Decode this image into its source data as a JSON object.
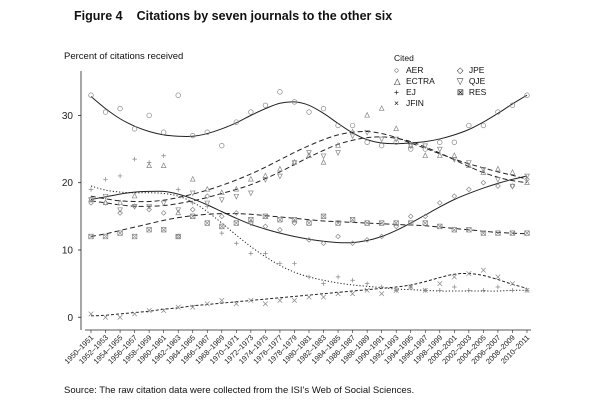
{
  "figure": {
    "number": "Figure 4",
    "title": "Citations by seven journals to the other six",
    "source": "Source: The raw citation data were collected from the ISI’s Web of Social Sciences."
  },
  "chart_data": {
    "type": "scatter",
    "ylabel": "Percent of citations received",
    "ylim": [
      -1,
      36
    ],
    "yticks": [
      0,
      10,
      20,
      30
    ],
    "grid": false,
    "legend_title": "Cited",
    "legend_position": "top-right",
    "categories": [
      "1950–1951",
      "1952–1953",
      "1954–1955",
      "1956–1957",
      "1958–1959",
      "1960–1961",
      "1962–1963",
      "1964–1965",
      "1966–1967",
      "1968–1969",
      "1970–1971",
      "1972–1973",
      "1974–1975",
      "1976–1977",
      "1978–1979",
      "1980–1981",
      "1982–1983",
      "1984–1985",
      "1986–1987",
      "1988–1989",
      "1990–1991",
      "1992–1993",
      "1994–1995",
      "1996–1997",
      "1998–1999",
      "2000–2001",
      "2002–2003",
      "2004–2005",
      "2006–2007",
      "2008–2009",
      "2010–2011"
    ],
    "series": [
      {
        "name": "AER",
        "marker": "circle",
        "line": "solid",
        "values": [
          33,
          30.5,
          31,
          28,
          30,
          27.5,
          33,
          27,
          27.5,
          25.5,
          29,
          30.5,
          31.5,
          33.5,
          32,
          30.5,
          31,
          28.5,
          28.5,
          26,
          25.5,
          26,
          25,
          25,
          26,
          26,
          28.5,
          28.5,
          30.5,
          31.5,
          33
        ],
        "smooth": [
          32.8,
          31.0,
          29.5,
          28.4,
          27.6,
          27.1,
          26.9,
          26.9,
          27.3,
          28.0,
          28.9,
          30.0,
          31.0,
          31.8,
          32.0,
          31.5,
          30.3,
          28.8,
          27.4,
          26.4,
          25.9,
          25.8,
          25.9,
          26.1,
          26.5,
          27.1,
          27.9,
          29.0,
          30.3,
          31.7,
          33.0
        ]
      },
      {
        "name": "ECTRA",
        "marker": "triangle-up",
        "line": "dashed",
        "values": [
          17.5,
          17,
          17,
          18,
          22.5,
          22.5,
          15.5,
          20.5,
          19,
          18.5,
          19,
          20.5,
          21,
          22,
          23,
          24,
          23,
          25.5,
          27.5,
          30,
          31,
          28,
          25.5,
          24,
          24,
          24,
          22.5,
          21.5,
          22,
          21.5,
          20
        ],
        "smooth": [
          18.0,
          17.6,
          17.3,
          17.2,
          17.2,
          17.4,
          17.8,
          18.3,
          18.9,
          19.6,
          20.4,
          21.3,
          22.3,
          23.4,
          24.5,
          25.5,
          26.4,
          27.1,
          27.5,
          27.6,
          27.3,
          26.7,
          25.9,
          25.1,
          24.3,
          23.5,
          22.8,
          22.2,
          21.6,
          21.1,
          20.5
        ]
      },
      {
        "name": "EJ",
        "marker": "plus",
        "line": "dotted",
        "values": [
          19,
          20.5,
          21,
          23.5,
          23,
          24,
          19,
          17,
          16.5,
          12.5,
          11,
          9.5,
          9.5,
          8,
          8,
          6,
          5,
          6,
          5.5,
          5,
          4.5,
          4,
          4.5,
          4,
          4,
          4.5,
          4,
          4,
          4.5,
          4,
          4
        ],
        "smooth": [
          19.5,
          18.9,
          18.6,
          18.5,
          18.5,
          18.4,
          18.0,
          17.1,
          15.7,
          14.0,
          12.2,
          10.5,
          9.0,
          7.7,
          6.7,
          6.0,
          5.5,
          5.1,
          4.8,
          4.6,
          4.4,
          4.2,
          4.1,
          4.0,
          3.9,
          3.9,
          3.9,
          3.9,
          3.9,
          4.0,
          4.0
        ]
      },
      {
        "name": "JFIN",
        "marker": "x",
        "line": "dashed-fine",
        "values": [
          0.5,
          0,
          0,
          0.5,
          1,
          1,
          1.5,
          1.5,
          2,
          2.5,
          2,
          2.5,
          2,
          2.5,
          2.5,
          3,
          3,
          3.5,
          3.5,
          4,
          3.5,
          4,
          4.5,
          4,
          5,
          6,
          6.5,
          7,
          6,
          5,
          4
        ],
        "smooth": [
          0.2,
          0.3,
          0.5,
          0.7,
          0.9,
          1.2,
          1.4,
          1.7,
          1.9,
          2.1,
          2.3,
          2.5,
          2.7,
          2.9,
          3.1,
          3.3,
          3.5,
          3.7,
          3.9,
          4.1,
          4.3,
          4.5,
          4.8,
          5.3,
          5.9,
          6.4,
          6.5,
          6.2,
          5.6,
          4.9,
          4.3
        ]
      },
      {
        "name": "JPE",
        "marker": "diamond",
        "line": "solid",
        "values": [
          17,
          17,
          15.5,
          16.5,
          16,
          15.5,
          12,
          16,
          18,
          15,
          15.5,
          14,
          13.5,
          13,
          14,
          11.5,
          11,
          12,
          11,
          11.5,
          12,
          13.5,
          15,
          15,
          17,
          18,
          19,
          20,
          19.5,
          19.5,
          20.5
        ],
        "smooth": [
          17.5,
          17.9,
          18.3,
          18.6,
          18.7,
          18.7,
          18.3,
          17.6,
          16.7,
          15.7,
          14.7,
          13.8,
          13.1,
          12.5,
          12.0,
          11.6,
          11.3,
          11.1,
          11.1,
          11.4,
          12.0,
          12.9,
          14.0,
          15.2,
          16.4,
          17.5,
          18.4,
          19.2,
          19.9,
          20.5,
          21.0
        ]
      },
      {
        "name": "QJE",
        "marker": "triangle-down",
        "line": "dashed",
        "values": [
          17.5,
          18,
          16,
          16.5,
          16.5,
          17,
          16,
          18.5,
          17,
          17.5,
          18,
          18.5,
          20.5,
          21,
          23,
          24.5,
          24,
          24.5,
          27,
          27.5,
          26.5,
          26.5,
          25.5,
          25.5,
          25,
          23.5,
          23,
          22,
          20.5,
          19.5,
          21
        ],
        "smooth": [
          17.3,
          17.0,
          16.7,
          16.5,
          16.5,
          16.6,
          16.9,
          17.3,
          17.8,
          18.4,
          19.0,
          19.7,
          20.6,
          21.6,
          22.7,
          23.8,
          24.8,
          25.7,
          26.3,
          26.7,
          26.8,
          26.6,
          26.1,
          25.3,
          24.4,
          23.4,
          22.4,
          21.5,
          20.8,
          20.3,
          20.0
        ]
      },
      {
        "name": "RES",
        "marker": "square-x",
        "line": "dashed",
        "values": [
          12,
          12,
          12.5,
          12,
          13,
          13,
          12,
          15,
          14,
          13.5,
          14,
          14.5,
          15,
          14.5,
          14.5,
          14,
          15,
          14,
          14.5,
          14,
          14,
          14,
          14,
          14,
          13.5,
          13,
          13,
          12.5,
          12.5,
          12.5,
          12.5
        ],
        "smooth": [
          12.0,
          12.4,
          12.9,
          13.4,
          13.9,
          14.4,
          14.8,
          15.1,
          15.3,
          15.4,
          15.4,
          15.3,
          15.1,
          14.9,
          14.7,
          14.5,
          14.3,
          14.2,
          14.1,
          14.0,
          13.9,
          13.8,
          13.7,
          13.6,
          13.4,
          13.2,
          13.0,
          12.8,
          12.6,
          12.5,
          12.4
        ]
      }
    ]
  },
  "legend": {
    "col1": [
      {
        "sym": "○",
        "label": "AER"
      },
      {
        "sym": "△",
        "label": "ECTRA"
      },
      {
        "sym": "+",
        "label": "EJ"
      },
      {
        "sym": "×",
        "label": "JFIN"
      }
    ],
    "col2": [
      {
        "sym": "◇",
        "label": "JPE"
      },
      {
        "sym": "▽",
        "label": "QJE"
      },
      {
        "sym": "⊠",
        "label": "RES"
      }
    ]
  }
}
